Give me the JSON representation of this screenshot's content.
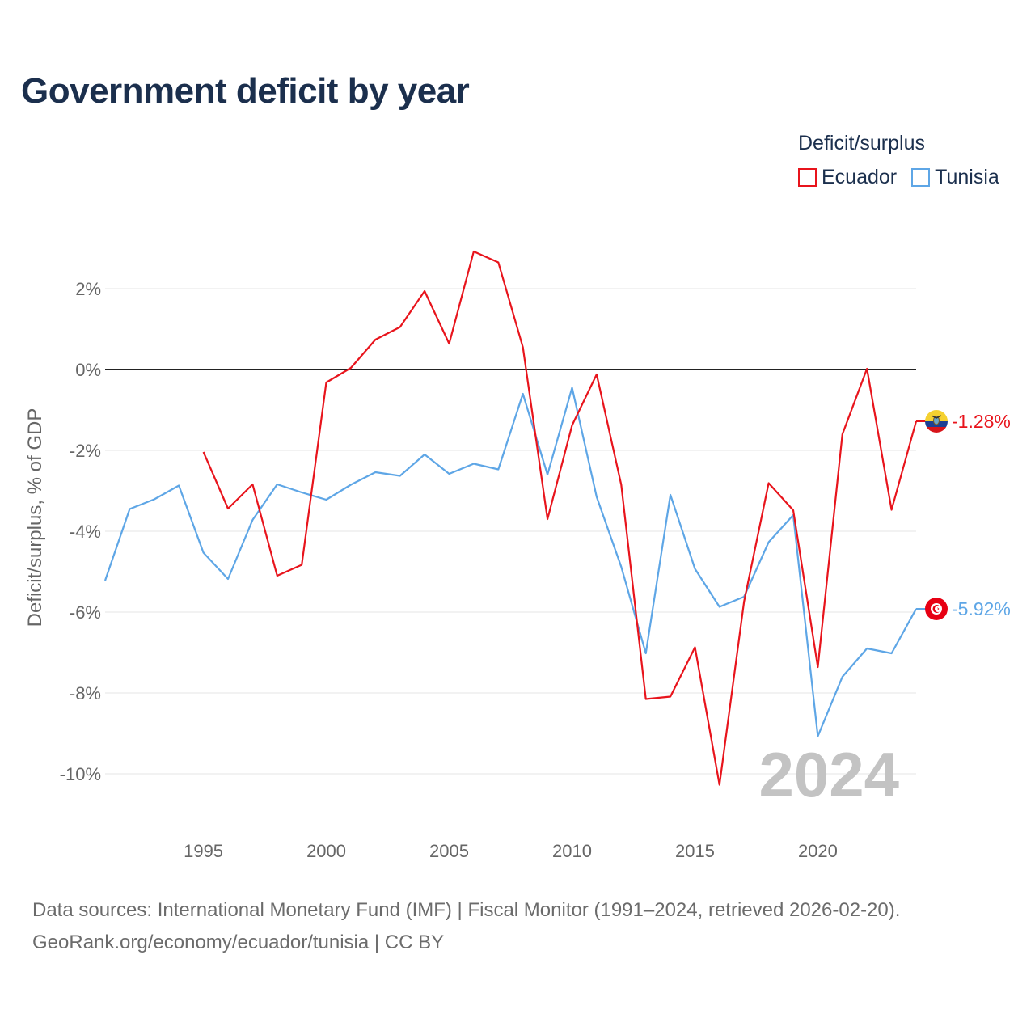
{
  "title": "Government deficit by year",
  "legend": {
    "title": "Deficit/surplus",
    "items": [
      {
        "name": "Ecuador",
        "color": "#e8141c"
      },
      {
        "name": "Tunisia",
        "color": "#5ea6e6"
      }
    ]
  },
  "year_label": "2024",
  "footer": {
    "line1": "Data sources: International Monetary Fund (IMF) | Fiscal Monitor (1991–2024, retrieved 2026-02-20).",
    "line2": "GeoRank.org/economy/ecuador/tunisia | CC BY"
  },
  "chart_data": {
    "type": "line",
    "title": "Government deficit by year",
    "xlabel": "",
    "ylabel": "Deficit/surplus, % of GDP",
    "xlim": [
      1991,
      2024
    ],
    "ylim": [
      -11,
      3.5
    ],
    "x_ticks": [
      1995,
      2000,
      2005,
      2010,
      2015,
      2020
    ],
    "y_ticks": [
      2,
      0,
      -2,
      -4,
      -6,
      -8,
      -10
    ],
    "y_tick_labels": [
      "2%",
      "0%",
      "-2%",
      "-4%",
      "-6%",
      "-8%",
      "-10%"
    ],
    "legend_position": "top-right",
    "series": [
      {
        "name": "Ecuador",
        "color": "#e8141c",
        "icon": "ecuador-flag-icon",
        "end_label": "-1.28%",
        "x": [
          1995,
          1996,
          1997,
          1998,
          1999,
          2000,
          2001,
          2002,
          2003,
          2004,
          2005,
          2006,
          2007,
          2008,
          2009,
          2010,
          2011,
          2012,
          2013,
          2014,
          2015,
          2016,
          2017,
          2018,
          2019,
          2020,
          2021,
          2022,
          2023,
          2024
        ],
        "values": [
          -2.04,
          -3.44,
          -2.84,
          -5.1,
          -4.83,
          -0.32,
          0.04,
          0.74,
          1.05,
          1.94,
          0.64,
          2.92,
          2.65,
          0.55,
          -3.7,
          -1.38,
          -0.12,
          -2.85,
          -8.15,
          -8.09,
          -6.87,
          -10.27,
          -5.74,
          -2.81,
          -3.48,
          -7.36,
          -1.6,
          0.02,
          -3.47,
          -1.28
        ]
      },
      {
        "name": "Tunisia",
        "color": "#5ea6e6",
        "icon": "tunisia-flag-icon",
        "end_label": "-5.92%",
        "x": [
          1991,
          1992,
          1993,
          1994,
          1995,
          1996,
          1997,
          1998,
          1999,
          2000,
          2001,
          2002,
          2003,
          2004,
          2005,
          2006,
          2007,
          2008,
          2009,
          2010,
          2011,
          2012,
          2013,
          2014,
          2015,
          2016,
          2017,
          2018,
          2019,
          2020,
          2021,
          2022,
          2023,
          2024
        ],
        "values": [
          -5.22,
          -3.45,
          -3.21,
          -2.87,
          -4.53,
          -5.18,
          -3.72,
          -2.84,
          -3.04,
          -3.22,
          -2.85,
          -2.54,
          -2.63,
          -2.1,
          -2.58,
          -2.33,
          -2.47,
          -0.6,
          -2.6,
          -0.45,
          -3.15,
          -4.88,
          -7.02,
          -3.1,
          -4.93,
          -5.87,
          -5.62,
          -4.27,
          -3.6,
          -9.07,
          -7.6,
          -6.9,
          -7.02,
          -5.92
        ]
      }
    ]
  }
}
